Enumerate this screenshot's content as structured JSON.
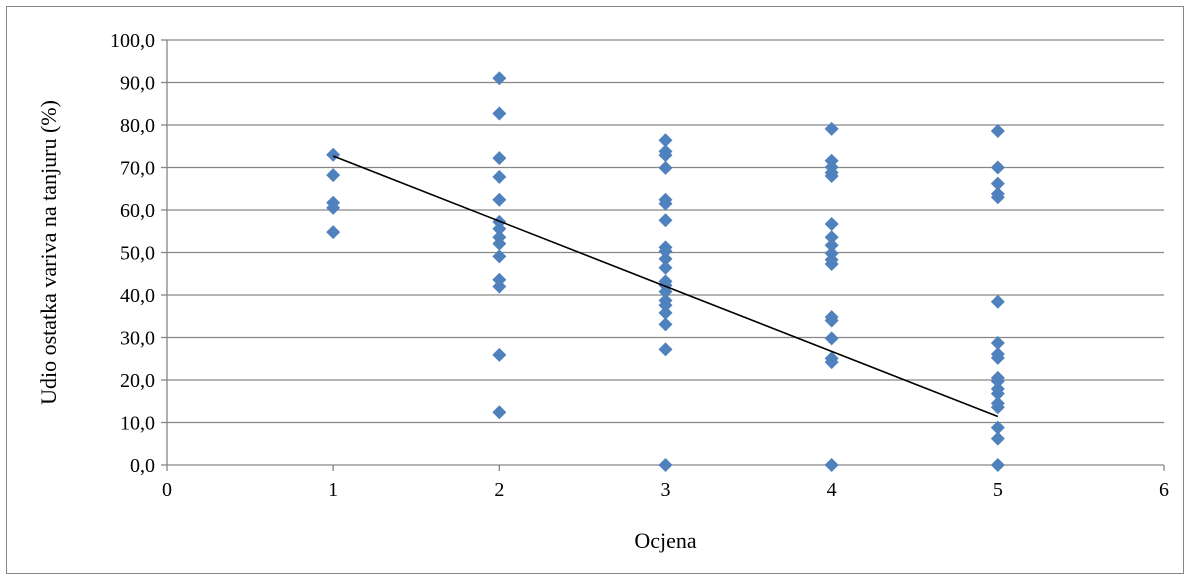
{
  "chart_data": {
    "type": "scatter",
    "xlabel": "Ocjena",
    "ylabel": "Udio ostatka variva na tanjuru (%)",
    "xlim": [
      0,
      6
    ],
    "ylim": [
      0,
      100
    ],
    "x_ticks": [
      0,
      1,
      2,
      3,
      4,
      5,
      6
    ],
    "x_tick_labels": [
      "0",
      "1",
      "2",
      "3",
      "4",
      "5",
      "6"
    ],
    "y_ticks": [
      0,
      10,
      20,
      30,
      40,
      50,
      60,
      70,
      80,
      90,
      100
    ],
    "y_tick_labels": [
      "0,0",
      "10,0",
      "20,0",
      "30,0",
      "40,0",
      "50,0",
      "60,0",
      "70,0",
      "80,0",
      "90,0",
      "100,0"
    ],
    "grid": "horizontal",
    "marker": "diamond",
    "marker_color": "#4F81BD",
    "trend_color": "#000000",
    "series": [
      {
        "points": [
          [
            1,
            73.0
          ],
          [
            1,
            68.2
          ],
          [
            1,
            61.7
          ],
          [
            1,
            60.5
          ],
          [
            1,
            54.8
          ],
          [
            2,
            91.0
          ],
          [
            2,
            82.7
          ],
          [
            2,
            72.2
          ],
          [
            2,
            67.8
          ],
          [
            2,
            62.4
          ],
          [
            2,
            57.2
          ],
          [
            2,
            55.6
          ],
          [
            2,
            53.6
          ],
          [
            2,
            52.1
          ],
          [
            2,
            49.1
          ],
          [
            2,
            43.6
          ],
          [
            2,
            42.0
          ],
          [
            2,
            25.9
          ],
          [
            2,
            12.4
          ],
          [
            3,
            76.4
          ],
          [
            3,
            73.8
          ],
          [
            3,
            72.9
          ],
          [
            3,
            69.9
          ],
          [
            3,
            62.4
          ],
          [
            3,
            61.5
          ],
          [
            3,
            57.6
          ],
          [
            3,
            51.2
          ],
          [
            3,
            50.3
          ],
          [
            3,
            48.5
          ],
          [
            3,
            46.4
          ],
          [
            3,
            43.2
          ],
          [
            3,
            42.3
          ],
          [
            3,
            40.8
          ],
          [
            3,
            38.7
          ],
          [
            3,
            37.6
          ],
          [
            3,
            35.8
          ],
          [
            3,
            33.1
          ],
          [
            3,
            27.2
          ],
          [
            3,
            0.0
          ],
          [
            4,
            79.1
          ],
          [
            4,
            71.6
          ],
          [
            4,
            70.1
          ],
          [
            4,
            68.8
          ],
          [
            4,
            68.0
          ],
          [
            4,
            56.7
          ],
          [
            4,
            53.6
          ],
          [
            4,
            51.7
          ],
          [
            4,
            49.8
          ],
          [
            4,
            48.3
          ],
          [
            4,
            47.3
          ],
          [
            4,
            34.8
          ],
          [
            4,
            34.0
          ],
          [
            4,
            29.8
          ],
          [
            4,
            25.1
          ],
          [
            4,
            24.2
          ],
          [
            4,
            0.0
          ],
          [
            5,
            78.6
          ],
          [
            5,
            70.0
          ],
          [
            5,
            66.2
          ],
          [
            5,
            63.8
          ],
          [
            5,
            63.0
          ],
          [
            5,
            38.4
          ],
          [
            5,
            28.7
          ],
          [
            5,
            26.1
          ],
          [
            5,
            25.2
          ],
          [
            5,
            20.5
          ],
          [
            5,
            19.7
          ],
          [
            5,
            17.9
          ],
          [
            5,
            16.8
          ],
          [
            5,
            14.5
          ],
          [
            5,
            13.6
          ],
          [
            5,
            8.8
          ],
          [
            5,
            6.2
          ],
          [
            5,
            0.0
          ]
        ]
      }
    ],
    "trendline": {
      "type": "linear",
      "x": [
        1,
        5
      ],
      "y": [
        72.7,
        11.4
      ]
    }
  }
}
